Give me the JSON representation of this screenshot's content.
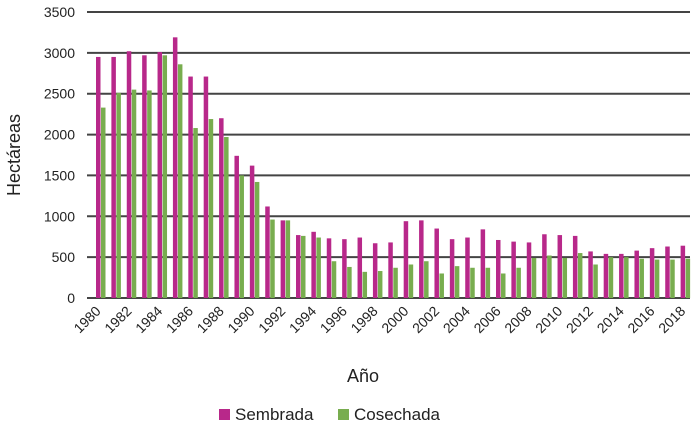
{
  "chart_data": {
    "type": "bar",
    "title": "",
    "xlabel": "Año",
    "ylabel": "Hectáreas",
    "ylim": [
      0,
      3500
    ],
    "yticks": [
      0,
      500,
      1000,
      1500,
      2000,
      2500,
      3000,
      3500
    ],
    "grid": true,
    "legend_placement": "bottom",
    "categories": [
      1980,
      1981,
      1982,
      1983,
      1984,
      1985,
      1986,
      1987,
      1988,
      1989,
      1990,
      1991,
      1992,
      1993,
      1994,
      1995,
      1996,
      1997,
      1998,
      1999,
      2000,
      2001,
      2002,
      2003,
      2004,
      2005,
      2006,
      2007,
      2008,
      2009,
      2010,
      2011,
      2012,
      2013,
      2014,
      2015,
      2016,
      2017,
      2018
    ],
    "xtick_labels": [
      "1980",
      "1982",
      "1984",
      "1986",
      "1988",
      "1990",
      "1992",
      "1994",
      "1996",
      "1998",
      "2000",
      "2002",
      "2004",
      "2006",
      "2008",
      "2010",
      "2012",
      "2014",
      "2016",
      "2018"
    ],
    "series": [
      {
        "name": "Sembrada",
        "color": "#B8288A",
        "values": [
          2950,
          2950,
          3020,
          2970,
          3010,
          3190,
          2710,
          2710,
          2200,
          1740,
          1620,
          1120,
          950,
          770,
          810,
          730,
          720,
          740,
          670,
          680,
          940,
          950,
          850,
          720,
          740,
          840,
          710,
          690,
          680,
          780,
          770,
          760,
          570,
          540,
          540,
          580,
          610,
          630,
          640
        ]
      },
      {
        "name": "Cosechada",
        "color": "#78AD4F",
        "values": [
          2330,
          2510,
          2550,
          2540,
          2970,
          2860,
          2080,
          2190,
          1970,
          1500,
          1420,
          960,
          950,
          760,
          740,
          450,
          380,
          320,
          330,
          370,
          410,
          450,
          300,
          390,
          370,
          370,
          300,
          370,
          490,
          520,
          490,
          550,
          410,
          500,
          500,
          480,
          470,
          470,
          480
        ]
      }
    ]
  }
}
